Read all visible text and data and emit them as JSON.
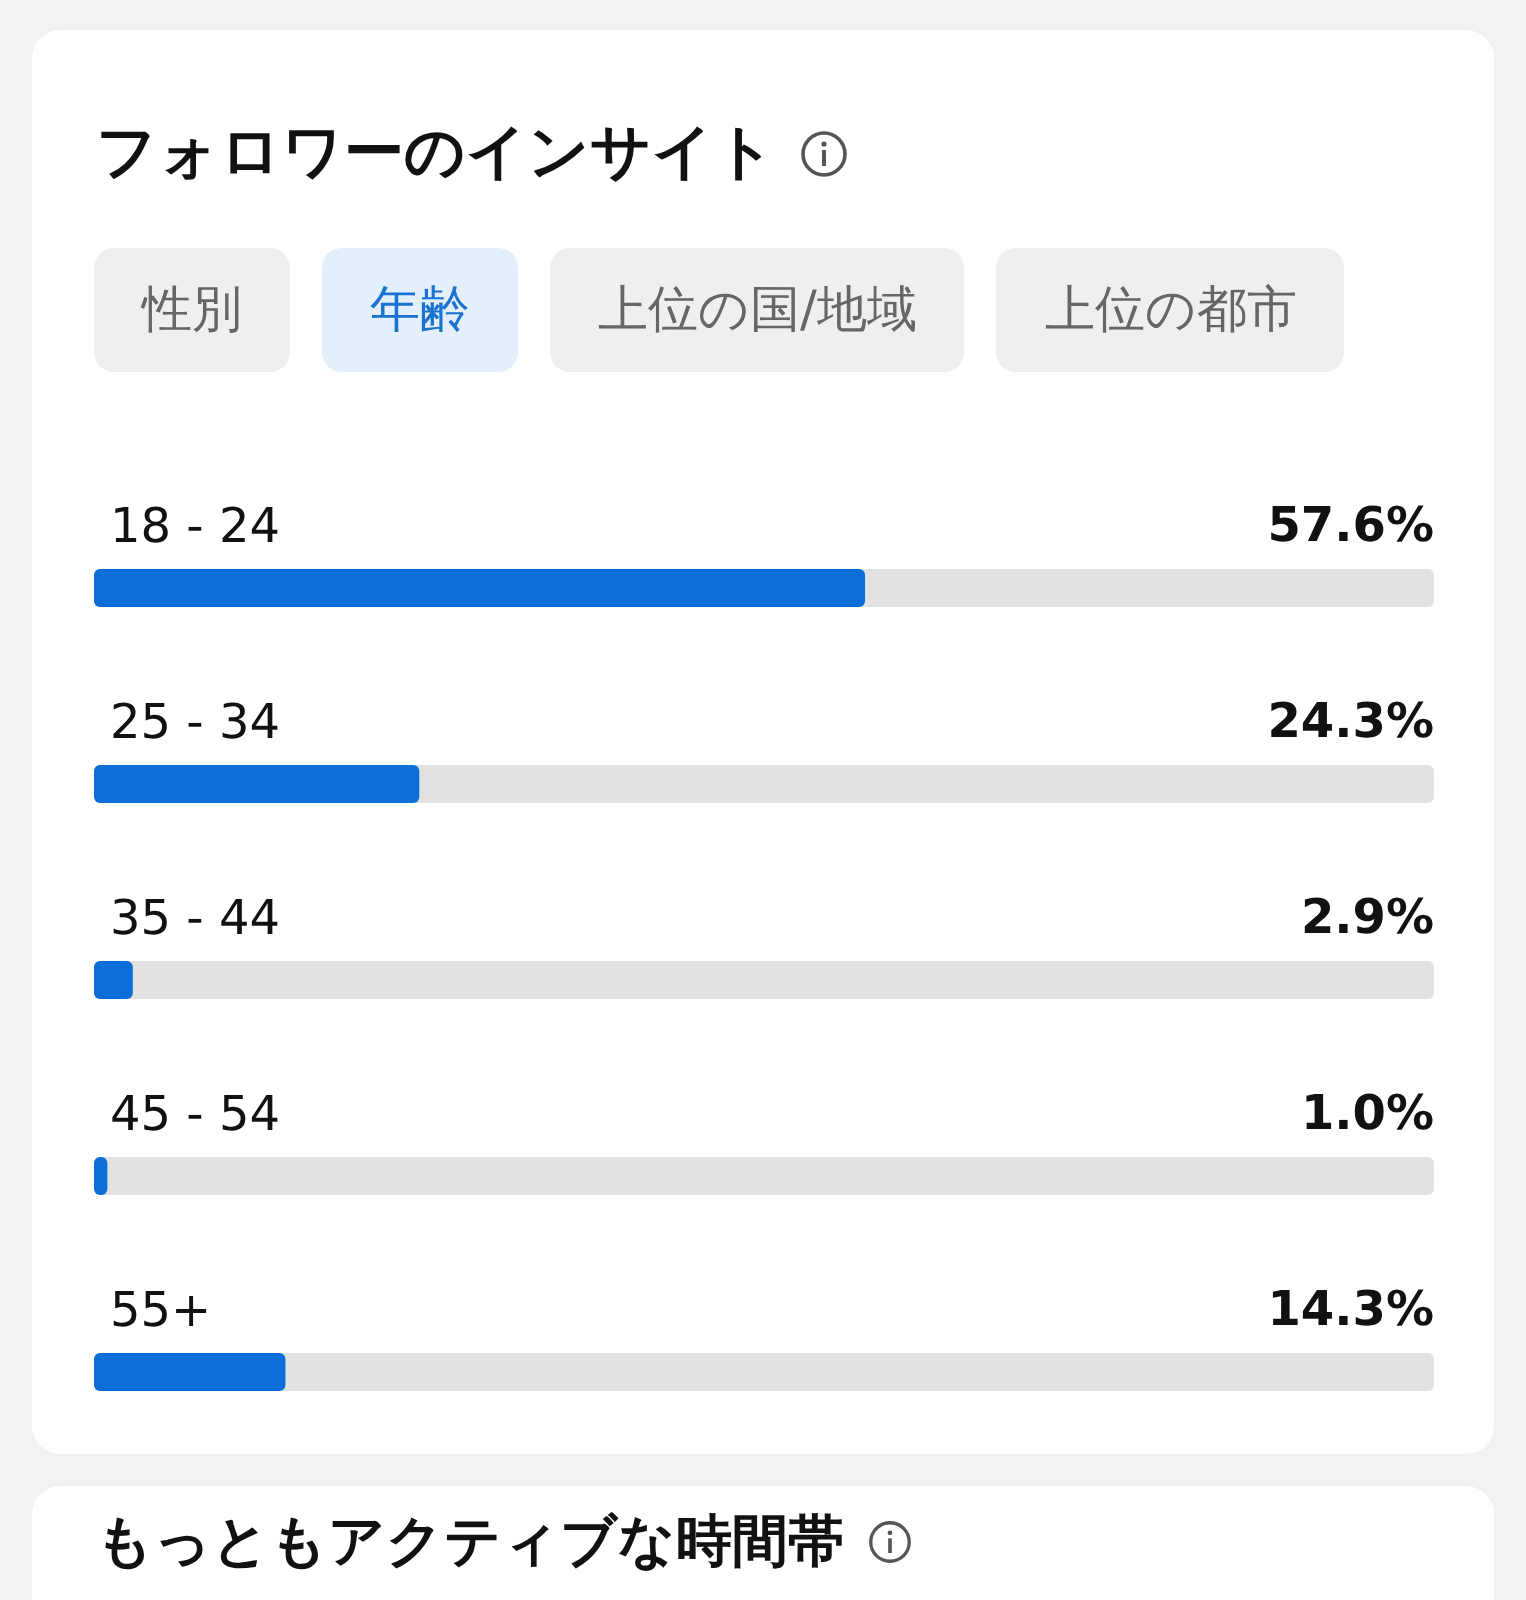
{
  "chart_data": {
    "type": "bar",
    "orientation": "horizontal",
    "title": "フォロワーのインサイト",
    "annotations": [
      "性別",
      "年齢",
      "上位の国/地域",
      "上位の都市",
      "もっともアクティブな時間帯"
    ],
    "categories": [
      "18 - 24",
      "25 - 34",
      "35 - 44",
      "45 - 54",
      "55+"
    ],
    "values": [
      57.6,
      24.3,
      2.9,
      1.0,
      14.3
    ],
    "value_labels": [
      "57.6%",
      "24.3%",
      "2.9%",
      "1.0%",
      "14.3%"
    ],
    "color": "#0a6fd8"
  }
}
